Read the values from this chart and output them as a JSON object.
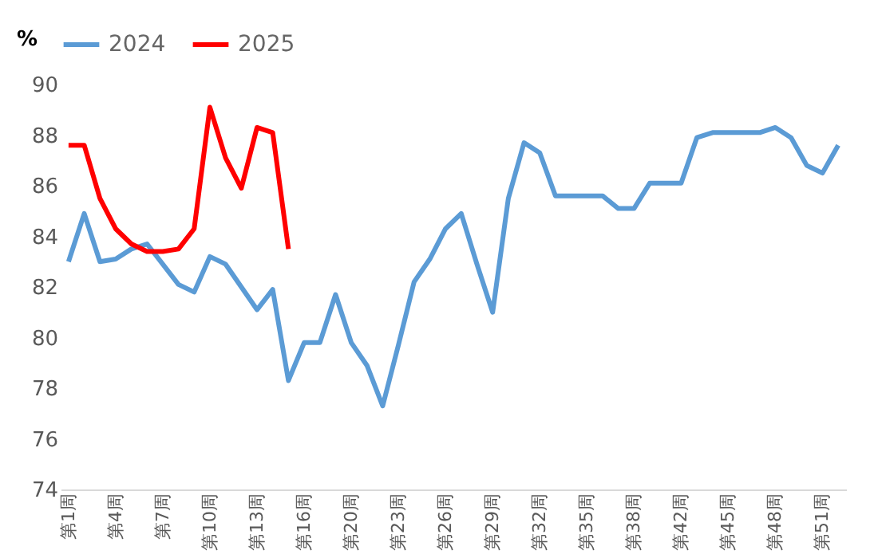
{
  "chart_data": {
    "type": "line",
    "categories": [
      "第1周",
      null,
      null,
      "第4周",
      null,
      null,
      "第7周",
      null,
      null,
      "第10周",
      null,
      null,
      "第13周",
      null,
      null,
      "第16周",
      null,
      null,
      "第20周",
      null,
      null,
      "第23周",
      null,
      null,
      "第26周",
      null,
      null,
      "第29周",
      null,
      null,
      "第32周",
      null,
      null,
      "第35周",
      null,
      null,
      "第38周",
      null,
      null,
      "第42周",
      null,
      null,
      "第45周",
      null,
      null,
      "第48周",
      null,
      null,
      "第51周",
      null
    ],
    "ylabel": "%",
    "series": [
      {
        "name": "2024",
        "color": "#5b9bd5",
        "values": [
          83.0,
          84.9,
          83.0,
          83.1,
          83.5,
          83.7,
          82.9,
          82.1,
          81.8,
          83.2,
          82.9,
          82.0,
          81.1,
          81.9,
          78.3,
          79.8,
          79.8,
          81.7,
          79.8,
          78.9,
          77.3,
          79.7,
          82.2,
          83.1,
          84.3,
          84.9,
          82.9,
          81.0,
          85.5,
          87.7,
          87.3,
          85.6,
          85.6,
          85.6,
          85.6,
          85.1,
          85.1,
          86.1,
          86.1,
          86.1,
          87.9,
          88.1,
          88.1,
          88.1,
          88.1,
          88.3,
          87.9,
          86.8,
          86.5,
          87.6
        ]
      },
      {
        "name": "2025",
        "color": "#ff0000",
        "values": [
          87.6,
          87.6,
          85.5,
          84.3,
          83.7,
          83.4,
          83.4,
          83.5,
          84.3,
          89.1,
          87.1,
          85.9,
          88.3,
          88.1,
          83.5,
          null,
          null,
          null,
          null,
          null,
          null,
          null,
          null,
          null,
          null,
          null,
          null,
          null,
          null,
          null,
          null,
          null,
          null,
          null,
          null,
          null,
          null,
          null,
          null,
          null,
          null,
          null,
          null,
          null,
          null,
          null,
          null,
          null,
          null,
          null
        ]
      }
    ],
    "ylim": [
      74,
      90
    ],
    "yticks": [
      74,
      76,
      78,
      80,
      82,
      84,
      86,
      88,
      90
    ],
    "grid": false,
    "legend": "top",
    "marker": "none",
    "line_style": "solid"
  }
}
